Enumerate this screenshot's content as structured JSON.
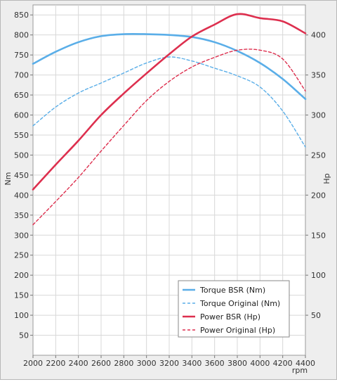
{
  "chart_data": {
    "type": "line",
    "xlabel": "rpm",
    "ylabel_left": "Nm",
    "ylabel_right": "Hp",
    "xlim": [
      2000,
      4400
    ],
    "ylim_left": [
      0,
      875
    ],
    "ylim_right": [
      0,
      437.5
    ],
    "xticks": [
      2000,
      2200,
      2400,
      2600,
      2800,
      3000,
      3200,
      3400,
      3600,
      3800,
      4000,
      4200,
      4400
    ],
    "yticks_left": [
      50,
      100,
      150,
      200,
      250,
      300,
      350,
      400,
      450,
      500,
      550,
      600,
      650,
      700,
      750,
      800,
      850
    ],
    "yticks_right": [
      50,
      100,
      150,
      200,
      250,
      300,
      350,
      400
    ],
    "grid": true,
    "legend_position": "bottom-right",
    "x": [
      2000,
      2200,
      2400,
      2600,
      2800,
      3000,
      3200,
      3400,
      3600,
      3800,
      4000,
      4200,
      4400
    ],
    "series": [
      {
        "name": "Torque BSR (Nm)",
        "axis": "left",
        "style": "solid",
        "color": "#5aaee8",
        "values": [
          728,
          758,
          782,
          797,
          802,
          802,
          800,
          795,
          782,
          760,
          730,
          690,
          640
        ]
      },
      {
        "name": "Torque Original (Nm)",
        "axis": "left",
        "style": "dashed",
        "color": "#5aaee8",
        "values": [
          573,
          620,
          655,
          680,
          705,
          730,
          745,
          735,
          717,
          698,
          670,
          610,
          520
        ]
      },
      {
        "name": "Power BSR (Hp)",
        "axis": "right",
        "style": "solid",
        "color": "#dd2f4e",
        "values": [
          207,
          238,
          268,
          300,
          327,
          352,
          376,
          398,
          413,
          426,
          421,
          417,
          402
        ]
      },
      {
        "name": "Power Original (Hp)",
        "axis": "right",
        "style": "dashed",
        "color": "#dd2f4e",
        "values": [
          163,
          192,
          222,
          255,
          287,
          318,
          342,
          360,
          372,
          381,
          381,
          370,
          330
        ]
      }
    ]
  }
}
